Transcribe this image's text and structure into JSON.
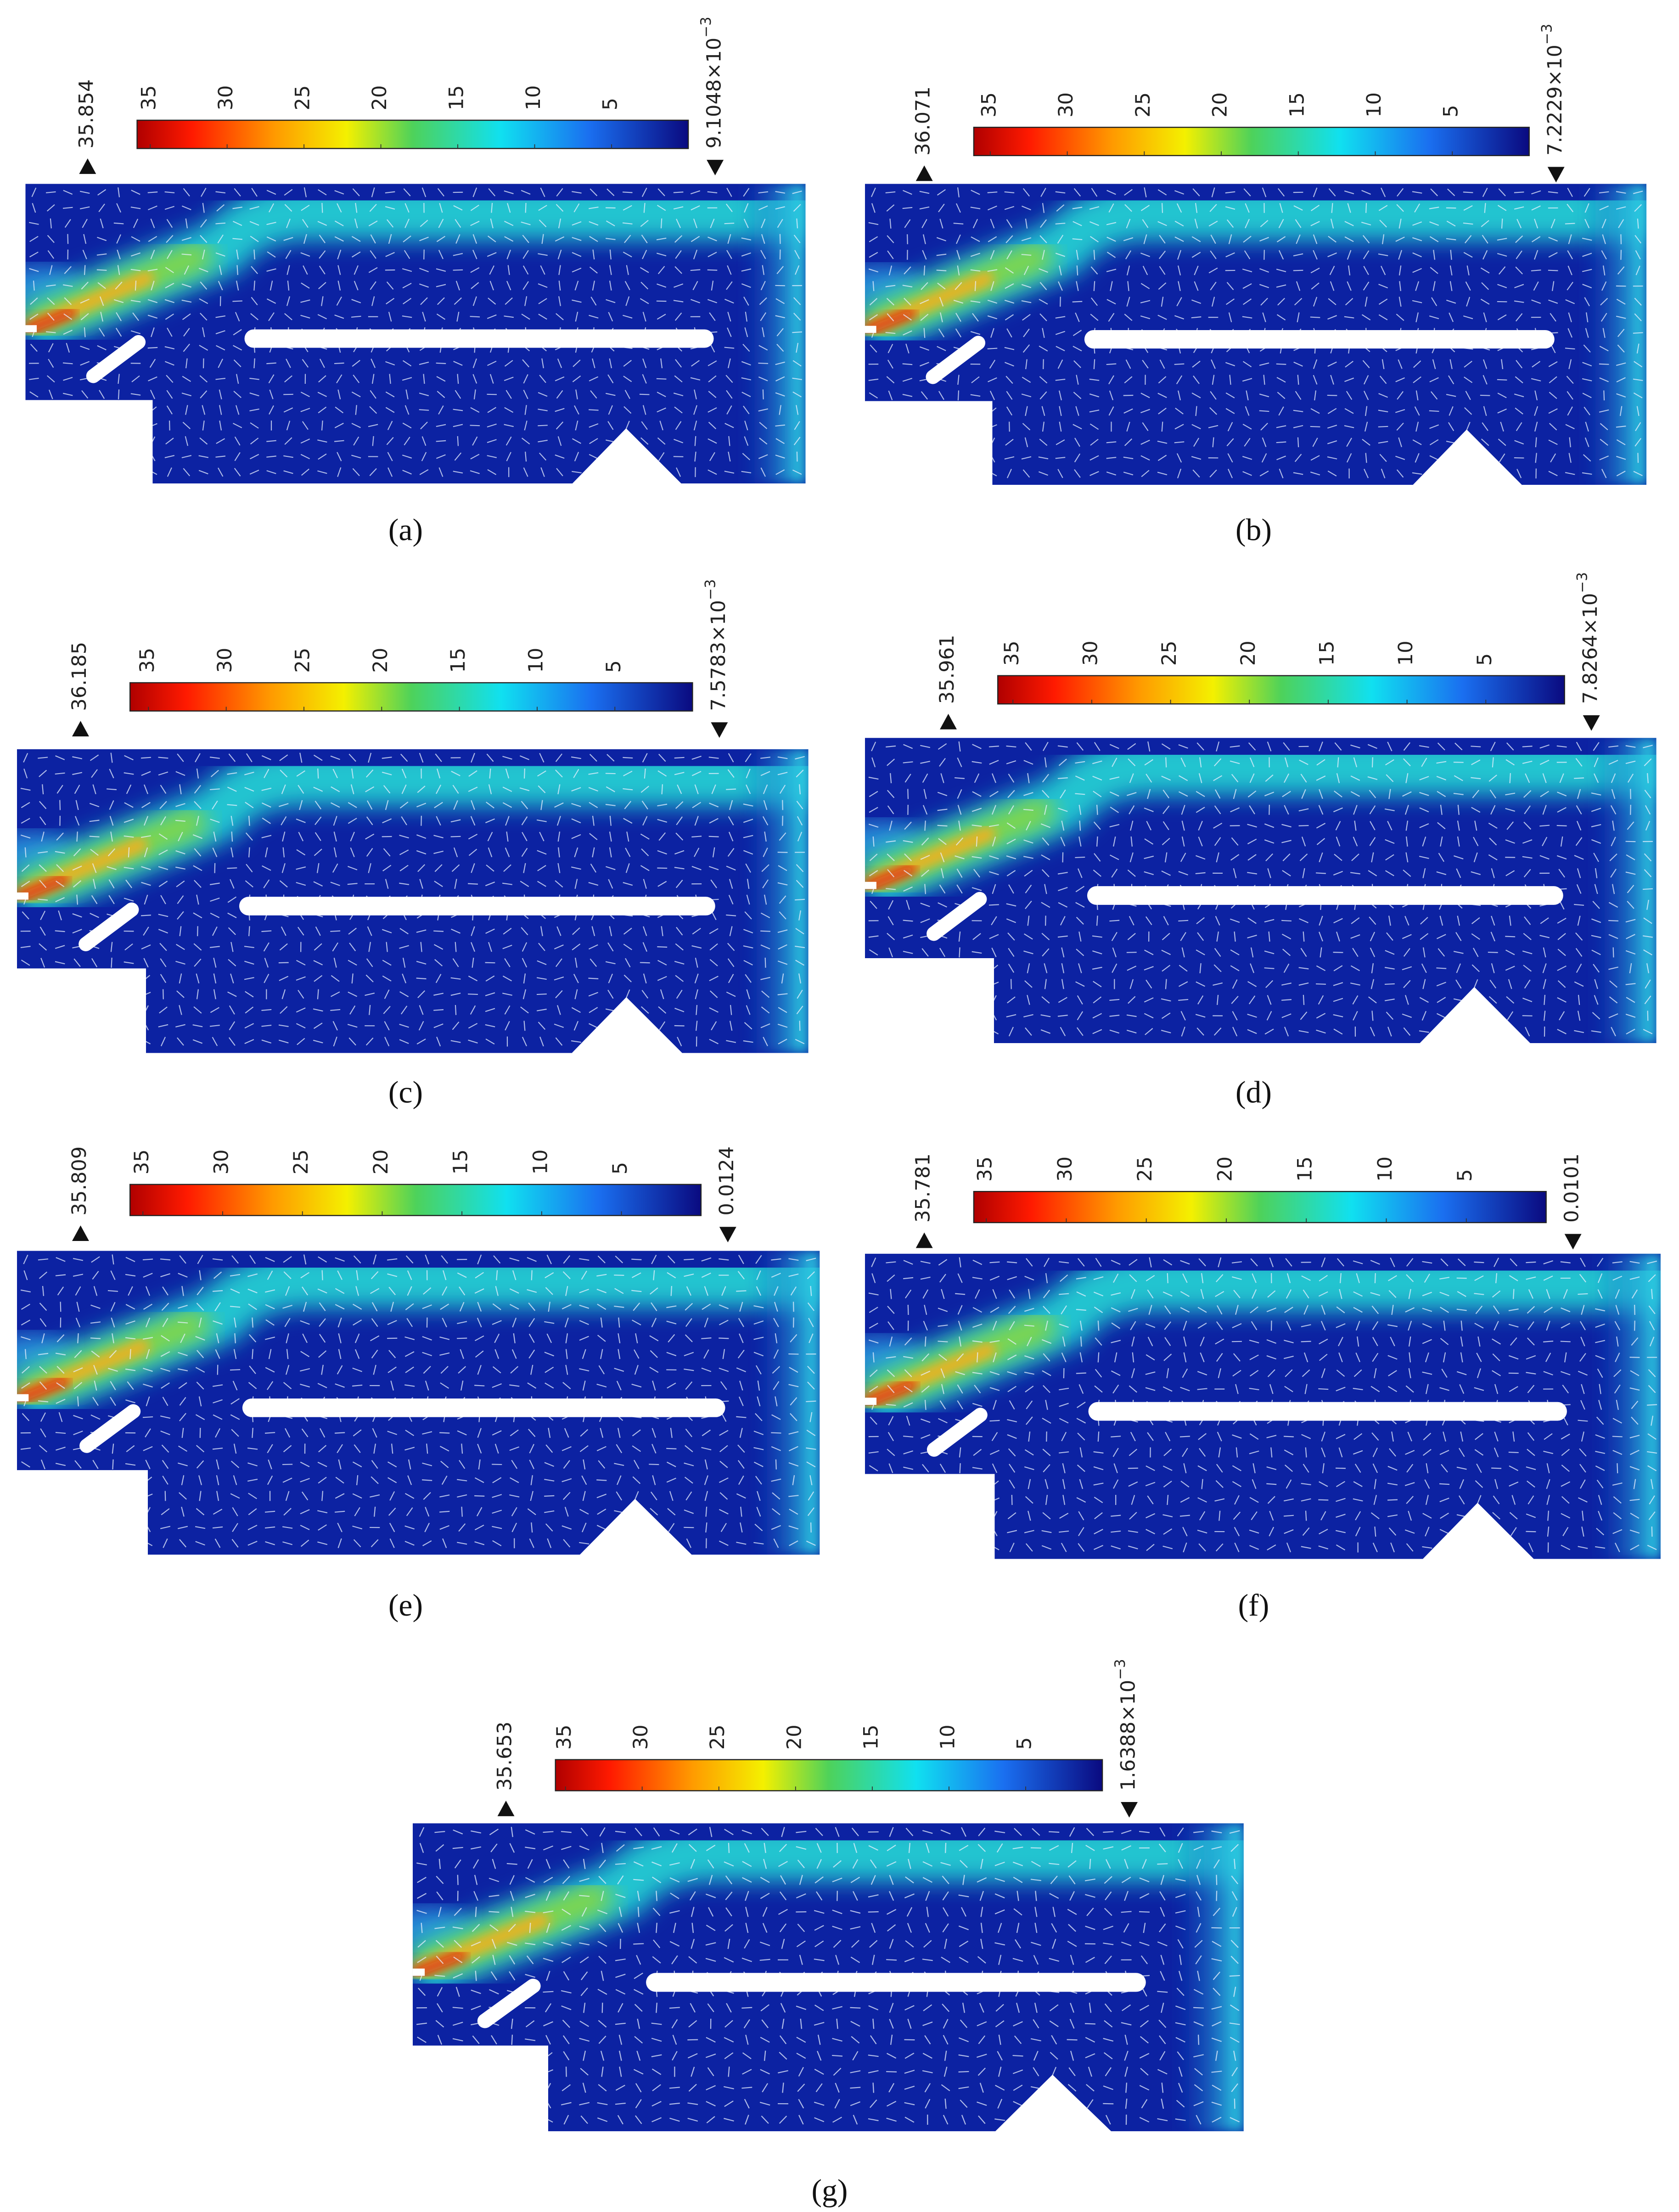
{
  "panels": [
    {
      "label": "(a)",
      "colorbar": {
        "max": 35.854,
        "min": {
          "value": 0.0091048,
          "label": "9.1048×10",
          "exponent": "−3"
        },
        "ticks": [
          35,
          30,
          25,
          20,
          15,
          10,
          5
        ]
      }
    },
    {
      "label": "(b)",
      "colorbar": {
        "max": 36.071,
        "min": {
          "value": 0.0072229,
          "label": "7.2229×10",
          "exponent": "−3"
        },
        "ticks": [
          35,
          30,
          25,
          20,
          15,
          10,
          5
        ]
      }
    },
    {
      "label": "(c)",
      "colorbar": {
        "max": 36.185,
        "min": {
          "value": 0.0075783,
          "label": "7.5783×10",
          "exponent": "−3"
        },
        "ticks": [
          35,
          30,
          25,
          20,
          15,
          10,
          5
        ]
      }
    },
    {
      "label": "(d)",
      "colorbar": {
        "max": 35.961,
        "min": {
          "value": 0.0078264,
          "label": "7.8264×10",
          "exponent": "−3"
        },
        "ticks": [
          35,
          30,
          25,
          20,
          15,
          10,
          5
        ]
      }
    },
    {
      "label": "(e)",
      "colorbar": {
        "max": 35.809,
        "min": 0.0124,
        "ticks": [
          35,
          30,
          25,
          20,
          15,
          10,
          5
        ]
      }
    },
    {
      "label": "(f)",
      "colorbar": {
        "max": 35.781,
        "min": 0.0101,
        "ticks": [
          35,
          30,
          25,
          20,
          15,
          10,
          5
        ]
      }
    },
    {
      "label": "(g)",
      "colorbar": {
        "max": 35.653,
        "min": {
          "value": 0.0016388,
          "label": "1.6388×10",
          "exponent": "−3"
        },
        "ticks": [
          35,
          30,
          25,
          20,
          15,
          10,
          5
        ]
      }
    }
  ]
}
